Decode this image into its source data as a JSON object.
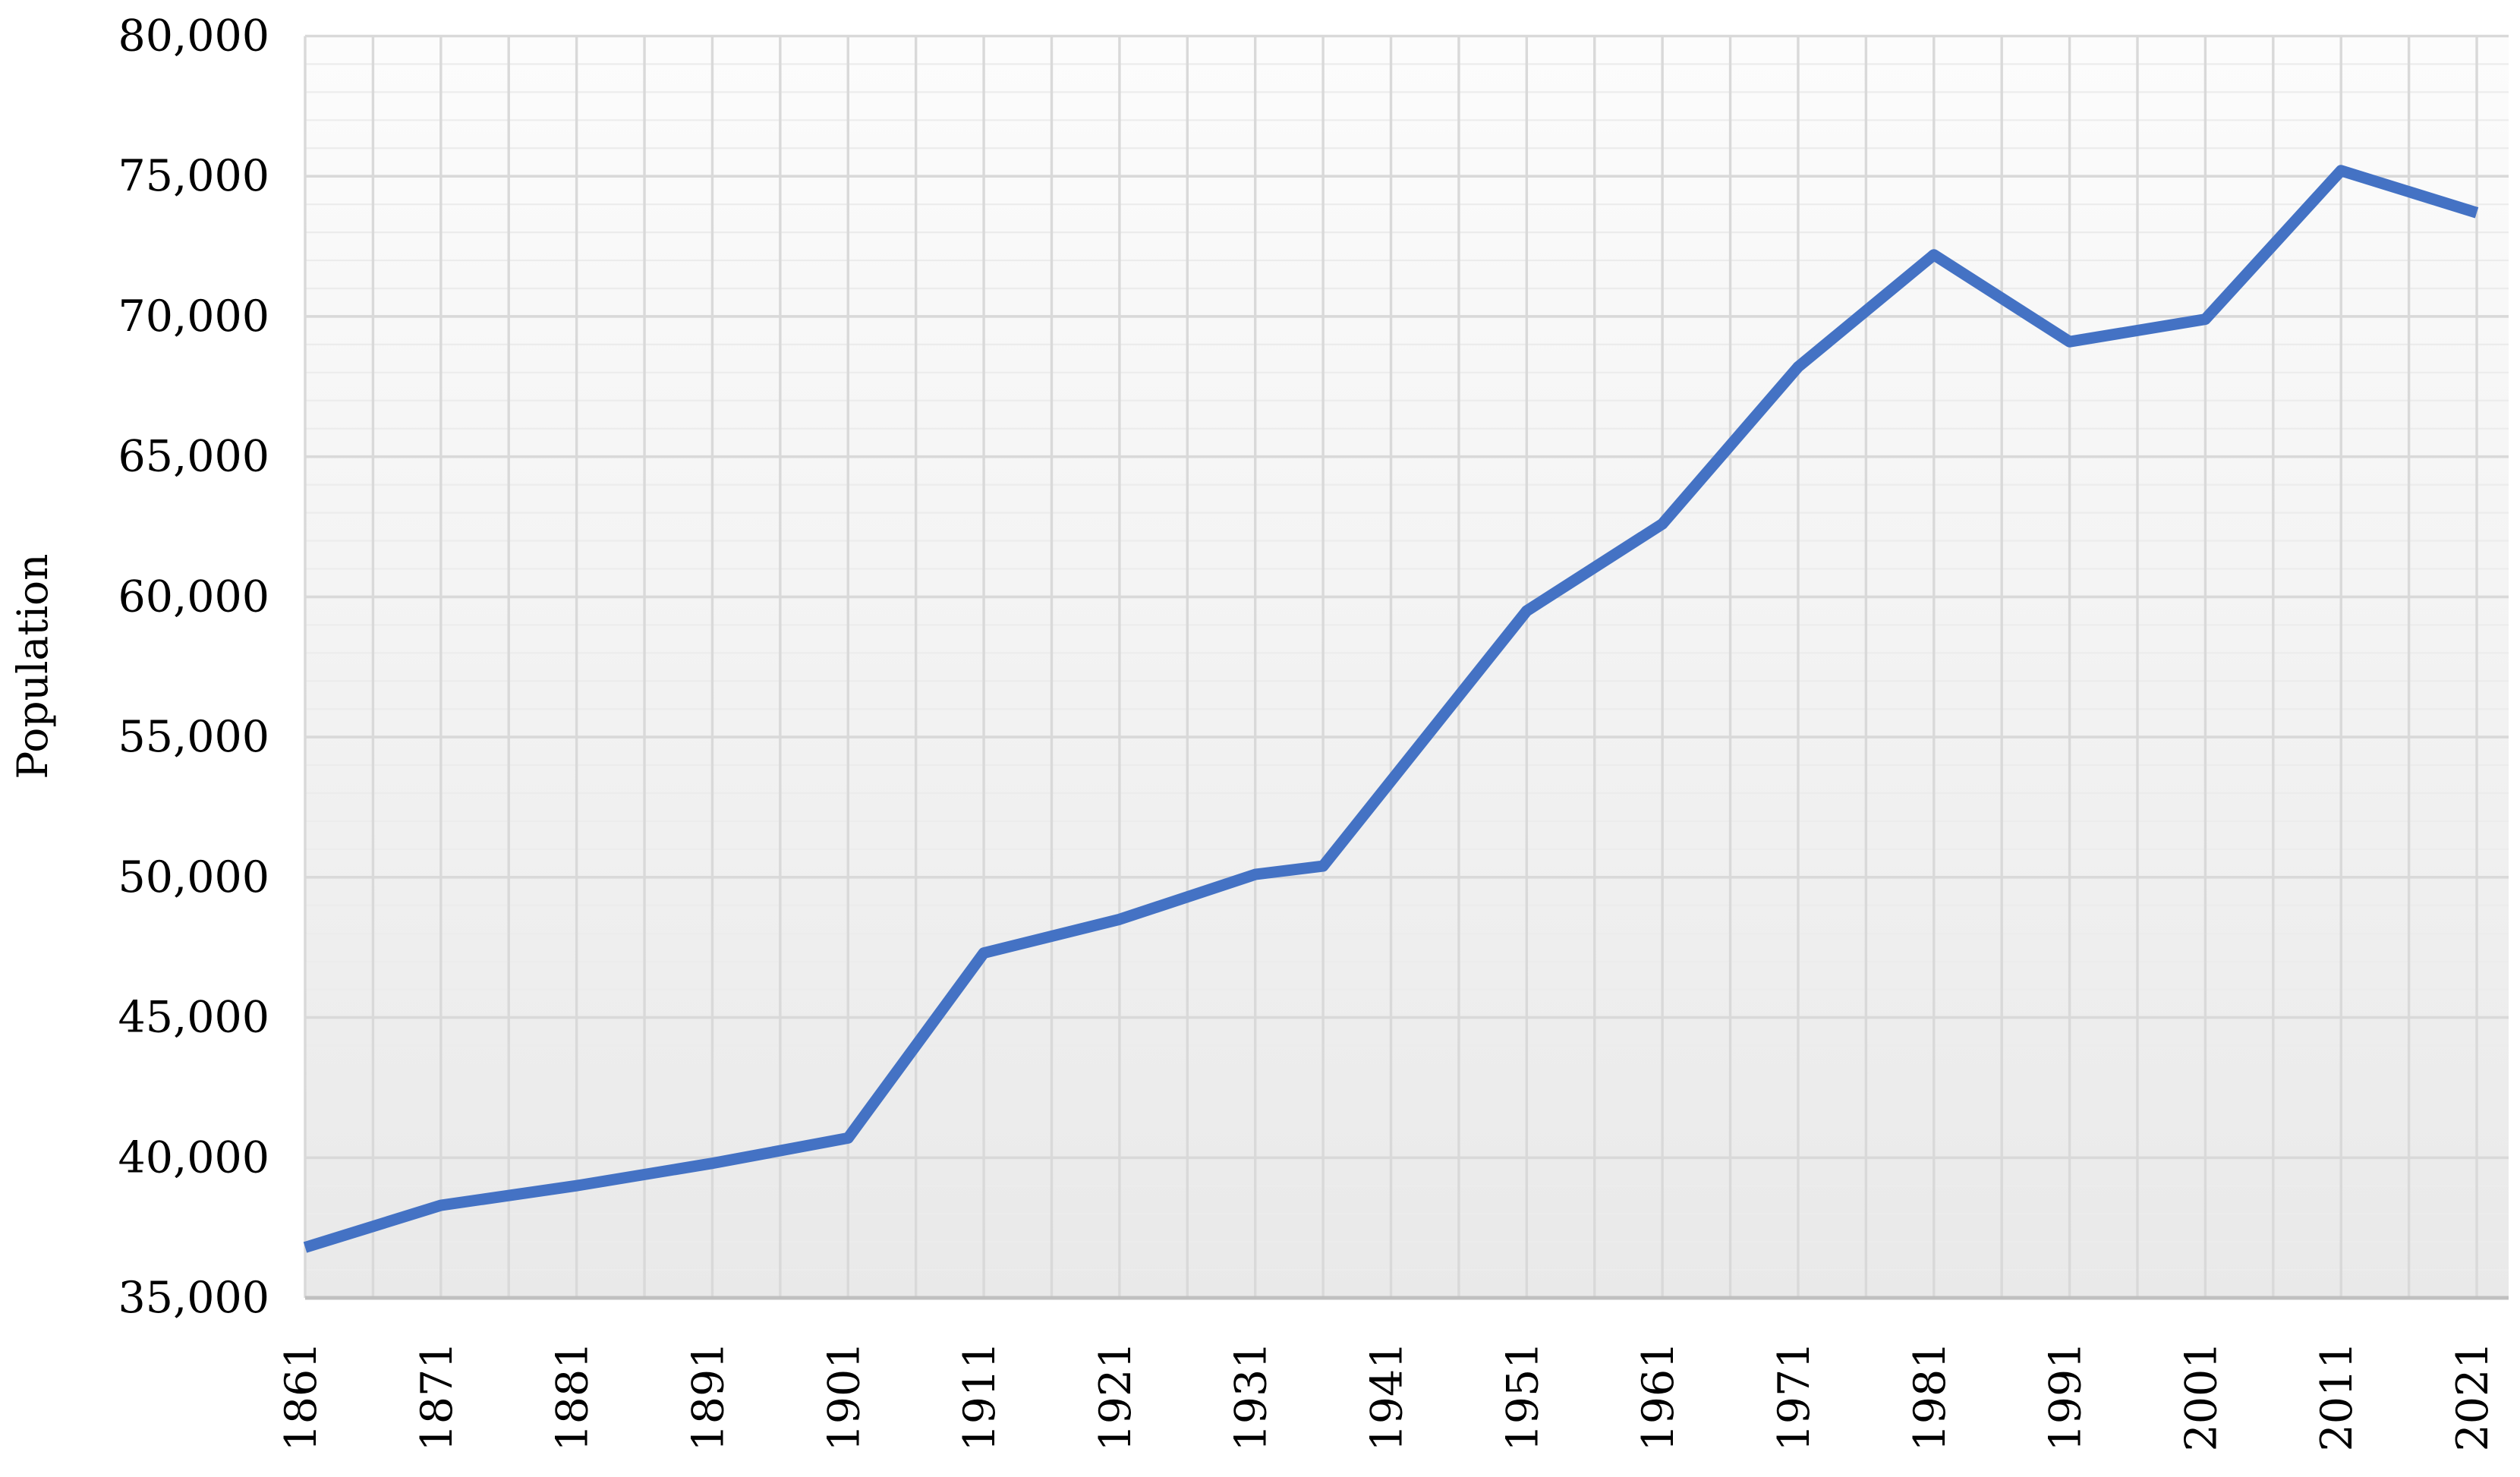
{
  "chart_data": {
    "type": "line",
    "title": "",
    "xlabel": "",
    "ylabel": "Population",
    "x": [
      1861,
      1871,
      1881,
      1891,
      1901,
      1911,
      1921,
      1931,
      1936,
      1951,
      1961,
      1971,
      1981,
      1991,
      2001,
      2011,
      2021
    ],
    "series": [
      {
        "name": "Population",
        "color": "#4472C4",
        "values": [
          36800,
          38300,
          39000,
          39800,
          40700,
          47300,
          48500,
          50100,
          50400,
          59500,
          62600,
          68200,
          72200,
          69100,
          69900,
          75200,
          73700
        ]
      }
    ],
    "ylim": [
      35000,
      80000
    ],
    "y_major_step": 5000,
    "y_minor_step": 1000,
    "xlim": [
      1861,
      2021
    ],
    "x_grid_step_years": 5,
    "x_label_step_years": 10,
    "y_tick_labels": [
      "35,000",
      "40,000",
      "45,000",
      "50,000",
      "55,000",
      "60,000",
      "65,000",
      "70,000",
      "75,000",
      "80,000"
    ],
    "x_tick_labels": [
      "1861",
      "1871",
      "1881",
      "1891",
      "1901",
      "1911",
      "1921",
      "1931",
      "1941",
      "1951",
      "1961",
      "1971",
      "1981",
      "1991",
      "2001",
      "2011",
      "2021"
    ],
    "legend": "none",
    "grid": true,
    "colors": {
      "line": "#4472C4",
      "grid_major": "#d9d9d9",
      "grid_minor": "#ececec",
      "axis_line": "#c0c0c0",
      "plot_fill_top": "#fcfcfc",
      "plot_fill_bottom": "#e9e9e9",
      "text": "#000000",
      "page_background": "#ffffff"
    }
  }
}
